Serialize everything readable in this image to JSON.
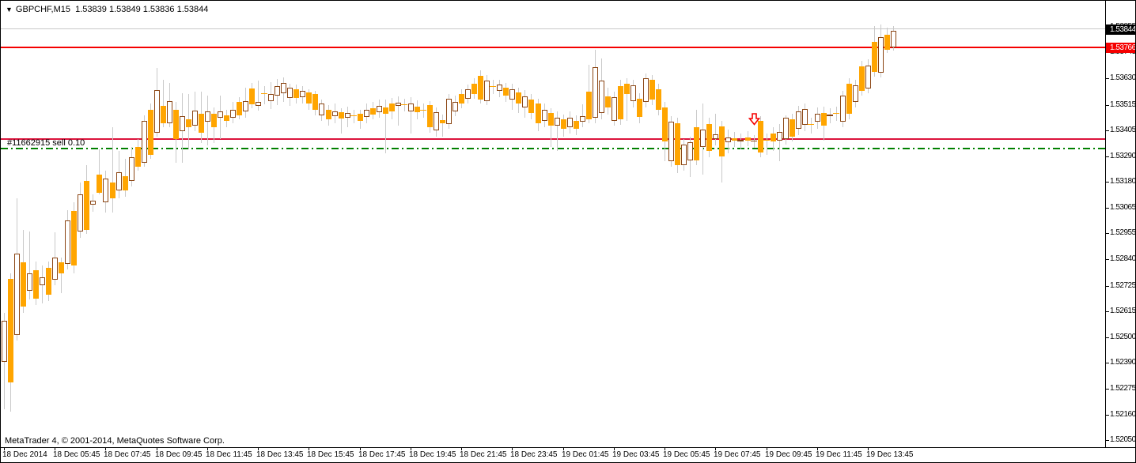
{
  "title": {
    "marker": "▼",
    "symbol": "GBPCHF,M15",
    "ohlc": "1.53839 1.53849 1.53836 1.53844"
  },
  "footer": {
    "copyright": "MetaTrader 4, © 2001-2014, MetaQuotes Software Corp."
  },
  "price_axis": {
    "bid_box": "1.53844",
    "alert_box": "1.53766",
    "ticks": [
      "1.53855",
      "1.53745",
      "1.53630",
      "1.53515",
      "1.53405",
      "1.53290",
      "1.53180",
      "1.53065",
      "1.52955",
      "1.52840",
      "1.52725",
      "1.52615",
      "1.52500",
      "1.52390",
      "1.52275",
      "1.52160",
      "1.52050"
    ]
  },
  "time_axis": {
    "ticks": [
      {
        "bar": 0,
        "label": "18 Dec 2014"
      },
      {
        "bar": 8,
        "label": "18 Dec 05:45"
      },
      {
        "bar": 16,
        "label": "18 Dec 07:45"
      },
      {
        "bar": 24,
        "label": "18 Dec 09:45"
      },
      {
        "bar": 32,
        "label": "18 Dec 11:45"
      },
      {
        "bar": 40,
        "label": "18 Dec 13:45"
      },
      {
        "bar": 48,
        "label": "18 Dec 15:45"
      },
      {
        "bar": 56,
        "label": "18 Dec 17:45"
      },
      {
        "bar": 64,
        "label": "18 Dec 19:45"
      },
      {
        "bar": 72,
        "label": "18 Dec 21:45"
      },
      {
        "bar": 80,
        "label": "18 Dec 23:45"
      },
      {
        "bar": 88,
        "label": "19 Dec 01:45"
      },
      {
        "bar": 96,
        "label": "19 Dec 03:45"
      },
      {
        "bar": 104,
        "label": "19 Dec 05:45"
      },
      {
        "bar": 112,
        "label": "19 Dec 07:45"
      },
      {
        "bar": 120,
        "label": "19 Dec 09:45"
      },
      {
        "bar": 128,
        "label": "19 Dec 11:45"
      },
      {
        "bar": 136,
        "label": "19 Dec 13:45"
      }
    ]
  },
  "chart_data": {
    "type": "candlestick",
    "symbol": "GBPCHF",
    "timeframe": "M15",
    "current_bid": 1.53844,
    "colors": {
      "bear_fill": "#ffa500",
      "bull_border": "#8b4513",
      "wick": "#c9c9c9",
      "line_top": "#f50000",
      "line_bottom": "#dc143c",
      "order_line": "#008000",
      "gray_line": "#c8c8c8"
    },
    "scale": {
      "refPrice": 1.5363,
      "refY": 98.3,
      "pxPerUnit": 28986,
      "x0": 4,
      "dx": 8.03,
      "plotRight": 1396,
      "axisY": 565
    },
    "ylim": [
      1.5205,
      1.53866
    ],
    "hlines": [
      {
        "name": "gray-high-line",
        "price": 1.53847,
        "color": "#c8c8c8",
        "w": 1,
        "style": "solid"
      },
      {
        "name": "resistance-line",
        "price": 1.53766,
        "color": "#f50000",
        "w": 2,
        "style": "solid"
      },
      {
        "name": "support-line",
        "price": 1.53365,
        "color": "#dc143c",
        "w": 2,
        "style": "solid"
      },
      {
        "name": "order-open-line",
        "price": 1.53324,
        "color": "#008000",
        "w": 2,
        "style": "dashdot"
      }
    ],
    "order": {
      "label": "#11662915 sell 0.10",
      "type": "sell",
      "volume": "0.10",
      "open_price": 1.53324
    },
    "arrow": {
      "bar": 118,
      "price": 1.53479
    },
    "candles": [
      [
        1.52392,
        1.52606,
        1.52185,
        1.52572
      ],
      [
        1.52755,
        1.52779,
        1.52175,
        1.52303
      ],
      [
        1.5251,
        1.53107,
        1.52486,
        1.52865
      ],
      [
        1.52827,
        1.52969,
        1.52606,
        1.52634
      ],
      [
        1.52703,
        1.52962,
        1.52665,
        1.52779
      ],
      [
        1.52793,
        1.52831,
        1.52641,
        1.52669
      ],
      [
        1.52727,
        1.52814,
        1.52648,
        1.52762
      ],
      [
        1.52803,
        1.52831,
        1.52658,
        1.52686
      ],
      [
        1.52751,
        1.52958,
        1.52727,
        1.52848
      ],
      [
        1.52827,
        1.52848,
        1.52693,
        1.52779
      ],
      [
        1.5282,
        1.53055,
        1.52796,
        1.5301
      ],
      [
        1.53051,
        1.53089,
        1.52779,
        1.52814
      ],
      [
        1.52962,
        1.53176,
        1.52934,
        1.53124
      ],
      [
        1.53182,
        1.53252,
        1.52951,
        1.52969
      ],
      [
        1.53079,
        1.53124,
        1.53048,
        1.53096
      ],
      [
        1.5321,
        1.5332,
        1.53124,
        1.53131
      ],
      [
        1.53089,
        1.53227,
        1.53045,
        1.53193
      ],
      [
        1.53176,
        1.53417,
        1.53045,
        1.53107
      ],
      [
        1.53141,
        1.53313,
        1.53107,
        1.53221
      ],
      [
        1.53203,
        1.53279,
        1.53113,
        1.53141
      ],
      [
        1.53182,
        1.53331,
        1.53158,
        1.53286
      ],
      [
        1.53331,
        1.53365,
        1.53227,
        1.53245
      ],
      [
        1.53262,
        1.53469,
        1.53245,
        1.53445
      ],
      [
        1.53493,
        1.53521,
        1.53279,
        1.53296
      ],
      [
        1.53393,
        1.53676,
        1.53376,
        1.53579
      ],
      [
        1.5351,
        1.53624,
        1.53417,
        1.53434
      ],
      [
        1.53434,
        1.5361,
        1.53417,
        1.53531
      ],
      [
        1.53493,
        1.53527,
        1.53262,
        1.53365
      ],
      [
        1.534,
        1.53565,
        1.53262,
        1.53465
      ],
      [
        1.53452,
        1.53562,
        1.5332,
        1.53417
      ],
      [
        1.53424,
        1.53572,
        1.534,
        1.5349
      ],
      [
        1.53476,
        1.53572,
        1.53348,
        1.53393
      ],
      [
        1.53441,
        1.53555,
        1.53338,
        1.53486
      ],
      [
        1.53476,
        1.53503,
        1.53348,
        1.53417
      ],
      [
        1.53458,
        1.53555,
        1.53365,
        1.53486
      ],
      [
        1.53469,
        1.53493,
        1.53417,
        1.53445
      ],
      [
        1.53458,
        1.53527,
        1.53434,
        1.53493
      ],
      [
        1.53527,
        1.53548,
        1.53452,
        1.53469
      ],
      [
        1.53486,
        1.5359,
        1.53458,
        1.53531
      ],
      [
        1.53586,
        1.5361,
        1.535,
        1.53517
      ],
      [
        1.5351,
        1.53621,
        1.5349,
        1.53527
      ],
      [
        1.53565,
        1.53596,
        1.53517,
        1.53562
      ],
      [
        1.53531,
        1.53614,
        1.53496,
        1.53562
      ],
      [
        1.53555,
        1.53628,
        1.53514,
        1.53596
      ],
      [
        1.53565,
        1.53634,
        1.53527,
        1.5361
      ],
      [
        1.53545,
        1.53607,
        1.5351,
        1.5359
      ],
      [
        1.53583,
        1.53603,
        1.53521,
        1.53545
      ],
      [
        1.53548,
        1.53596,
        1.53521,
        1.53576
      ],
      [
        1.53569,
        1.53583,
        1.53493,
        1.53521
      ],
      [
        1.53562,
        1.53576,
        1.53469,
        1.53493
      ],
      [
        1.53469,
        1.53538,
        1.53445,
        1.53521
      ],
      [
        1.53493,
        1.53514,
        1.53424,
        1.53452
      ],
      [
        1.53465,
        1.53521,
        1.53434,
        1.53486
      ],
      [
        1.53483,
        1.535,
        1.53389,
        1.53455
      ],
      [
        1.53458,
        1.53507,
        1.53417,
        1.53479
      ],
      [
        1.53469,
        1.53493,
        1.53434,
        1.53465
      ],
      [
        1.53476,
        1.53493,
        1.5341,
        1.53445
      ],
      [
        1.53462,
        1.53521,
        1.53434,
        1.53493
      ],
      [
        1.535,
        1.53527,
        1.53452,
        1.53472
      ],
      [
        1.53483,
        1.53538,
        1.53458,
        1.5351
      ],
      [
        1.53503,
        1.53538,
        1.53303,
        1.53476
      ],
      [
        1.53521,
        1.53545,
        1.53452,
        1.53486
      ],
      [
        1.5351,
        1.53551,
        1.53424,
        1.53524
      ],
      [
        1.53517,
        1.53541,
        1.53486,
        1.53514
      ],
      [
        1.53486,
        1.53548,
        1.53389,
        1.53521
      ],
      [
        1.53507,
        1.53534,
        1.53452,
        1.53483
      ],
      [
        1.53493,
        1.53521,
        1.53458,
        1.5349
      ],
      [
        1.53514,
        1.53531,
        1.53393,
        1.53417
      ],
      [
        1.53403,
        1.53503,
        1.53376,
        1.53483
      ],
      [
        1.53448,
        1.53472,
        1.53376,
        1.53434
      ],
      [
        1.53431,
        1.53562,
        1.5341,
        1.53541
      ],
      [
        1.53486,
        1.53555,
        1.53465,
        1.53527
      ],
      [
        1.53562,
        1.53583,
        1.535,
        1.53521
      ],
      [
        1.53541,
        1.53603,
        1.53521,
        1.53583
      ],
      [
        1.53607,
        1.53631,
        1.53541,
        1.53562
      ],
      [
        1.53641,
        1.53665,
        1.53521,
        1.53538
      ],
      [
        1.53531,
        1.53645,
        1.53514,
        1.53621
      ],
      [
        1.53596,
        1.53624,
        1.53562,
        1.53593
      ],
      [
        1.53576,
        1.53624,
        1.53548,
        1.53603
      ],
      [
        1.5359,
        1.5361,
        1.53527,
        1.53555
      ],
      [
        1.53538,
        1.53607,
        1.53493,
        1.53583
      ],
      [
        1.53569,
        1.5359,
        1.53479,
        1.53521
      ],
      [
        1.53503,
        1.53579,
        1.53458,
        1.53551
      ],
      [
        1.53538,
        1.53562,
        1.53452,
        1.53479
      ],
      [
        1.53521,
        1.53541,
        1.534,
        1.53434
      ],
      [
        1.53445,
        1.53521,
        1.53417,
        1.53493
      ],
      [
        1.53479,
        1.535,
        1.53331,
        1.53424
      ],
      [
        1.53424,
        1.53486,
        1.53313,
        1.53458
      ],
      [
        1.53452,
        1.53472,
        1.53376,
        1.5341
      ],
      [
        1.53417,
        1.53486,
        1.53389,
        1.53458
      ],
      [
        1.53445,
        1.53469,
        1.53383,
        1.5341
      ],
      [
        1.53441,
        1.53517,
        1.53417,
        1.53465
      ],
      [
        1.53572,
        1.5369,
        1.53434,
        1.53452
      ],
      [
        1.53458,
        1.53755,
        1.53434,
        1.53679
      ],
      [
        1.53479,
        1.53717,
        1.53452,
        1.53621
      ],
      [
        1.53551,
        1.5359,
        1.53472,
        1.53503
      ],
      [
        1.53445,
        1.53572,
        1.53424,
        1.53548
      ],
      [
        1.53596,
        1.53624,
        1.53427,
        1.53452
      ],
      [
        1.53607,
        1.53631,
        1.53445,
        1.53562
      ],
      [
        1.53531,
        1.53624,
        1.53503,
        1.536
      ],
      [
        1.53541,
        1.53565,
        1.53434,
        1.53462
      ],
      [
        1.53527,
        1.53652,
        1.53503,
        1.53631
      ],
      [
        1.53624,
        1.53645,
        1.53514,
        1.53538
      ],
      [
        1.53583,
        1.53607,
        1.53469,
        1.53493
      ],
      [
        1.53503,
        1.53527,
        1.53269,
        1.53355
      ],
      [
        1.53269,
        1.53465,
        1.53245,
        1.53441
      ],
      [
        1.53434,
        1.53458,
        1.53217,
        1.53252
      ],
      [
        1.53252,
        1.53365,
        1.53227,
        1.53341
      ],
      [
        1.53272,
        1.53376,
        1.532,
        1.53351
      ],
      [
        1.53417,
        1.53493,
        1.53252,
        1.53272
      ],
      [
        1.53331,
        1.53521,
        1.5321,
        1.53406
      ],
      [
        1.53431,
        1.53458,
        1.53286,
        1.53313
      ],
      [
        1.53365,
        1.53476,
        1.53338,
        1.53386
      ],
      [
        1.5342,
        1.53445,
        1.53176,
        1.53289
      ],
      [
        1.53351,
        1.53406,
        1.53303,
        1.53372
      ],
      [
        1.53369,
        1.53396,
        1.53331,
        1.53358
      ],
      [
        1.53355,
        1.53389,
        1.5332,
        1.53362
      ],
      [
        1.53372,
        1.534,
        1.53334,
        1.53358
      ],
      [
        1.53355,
        1.53383,
        1.53327,
        1.53358
      ],
      [
        1.53445,
        1.53465,
        1.53286,
        1.53307
      ],
      [
        1.53362,
        1.53389,
        1.53296,
        1.53358
      ],
      [
        1.53389,
        1.53417,
        1.53313,
        1.53355
      ],
      [
        1.53358,
        1.53431,
        1.53269,
        1.53396
      ],
      [
        1.53365,
        1.53469,
        1.53341,
        1.53458
      ],
      [
        1.53452,
        1.53476,
        1.53355,
        1.53376
      ],
      [
        1.5341,
        1.5351,
        1.53383,
        1.53486
      ],
      [
        1.53427,
        1.53521,
        1.534,
        1.53496
      ],
      [
        1.53431,
        1.53458,
        1.53389,
        1.53427
      ],
      [
        1.53441,
        1.53503,
        1.5341,
        1.53476
      ],
      [
        1.53479,
        1.53507,
        1.53358,
        1.53424
      ],
      [
        1.53465,
        1.535,
        1.53434,
        1.53472
      ],
      [
        1.53479,
        1.53507,
        1.53445,
        1.53476
      ],
      [
        1.53441,
        1.53576,
        1.53417,
        1.53555
      ],
      [
        1.53607,
        1.53631,
        1.53452,
        1.53476
      ],
      [
        1.53527,
        1.53624,
        1.53503,
        1.536
      ],
      [
        1.53682,
        1.53707,
        1.53555,
        1.53576
      ],
      [
        1.53586,
        1.53714,
        1.53565,
        1.53686
      ],
      [
        1.5379,
        1.53859,
        1.53638,
        1.53659
      ],
      [
        1.53655,
        1.53866,
        1.53634,
        1.5381
      ],
      [
        1.53821,
        1.53852,
        1.53742,
        1.53755
      ],
      [
        1.53766,
        1.53859,
        1.53752,
        1.53838
      ]
    ]
  }
}
